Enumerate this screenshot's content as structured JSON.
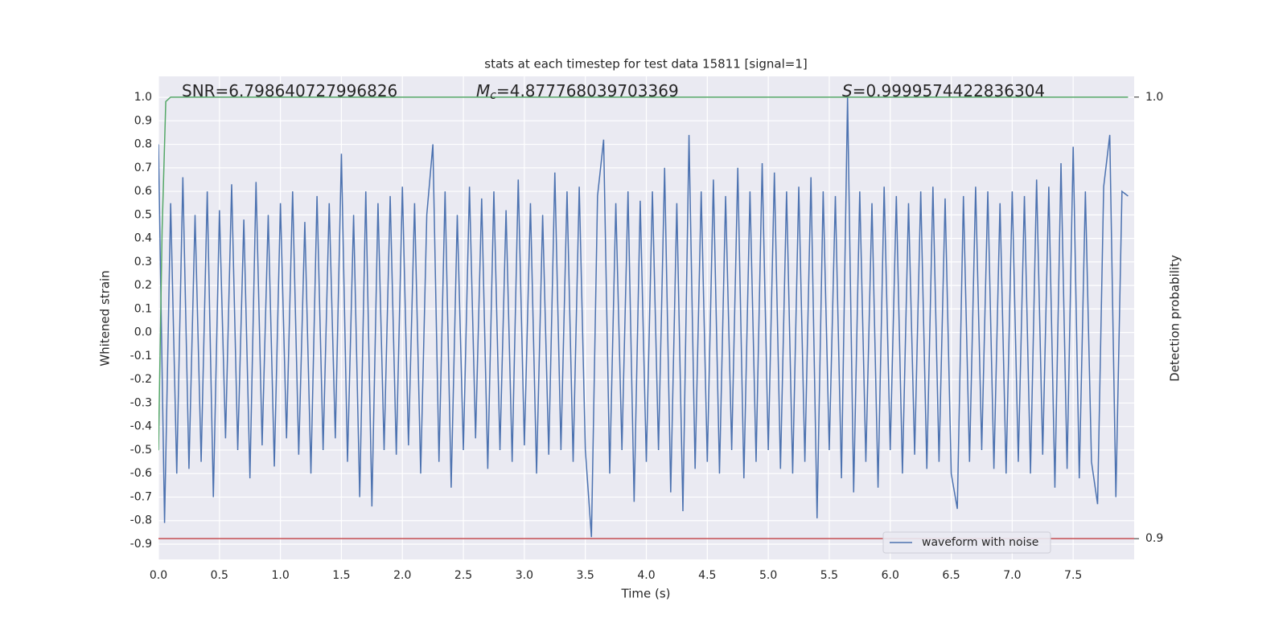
{
  "chart_data": {
    "type": "line",
    "title": "stats at each timestep for test data 15811 [signal=1]",
    "xlabel": "Time (s)",
    "ylabel": "Whitened strain",
    "y2label": "Detection probability",
    "annotations": [
      {
        "text": "SNR=6.798640727996826"
      },
      {
        "symbol": "M",
        "subscript": "c",
        "text": "=4.877768039703369"
      },
      {
        "symbol": "S",
        "text": "=0.9999574422836304"
      }
    ],
    "x": [
      0,
      0.05,
      0.1,
      0.15,
      0.2,
      0.25,
      0.3,
      0.35,
      0.4,
      0.45,
      0.5,
      0.55,
      0.6,
      0.65,
      0.7,
      0.75,
      0.8,
      0.85,
      0.9,
      0.95,
      1,
      1.05,
      1.1,
      1.15,
      1.2,
      1.25,
      1.3,
      1.35,
      1.4,
      1.45,
      1.5,
      1.55,
      1.6,
      1.65,
      1.7,
      1.75,
      1.8,
      1.85,
      1.9,
      1.95,
      2,
      2.05,
      2.1,
      2.15,
      2.2,
      2.25,
      2.3,
      2.35,
      2.4,
      2.45,
      2.5,
      2.55,
      2.6,
      2.65,
      2.7,
      2.75,
      2.8,
      2.85,
      2.9,
      2.95,
      3,
      3.05,
      3.1,
      3.15,
      3.2,
      3.25,
      3.3,
      3.35,
      3.4,
      3.45,
      3.5,
      3.55,
      3.6,
      3.65,
      3.7,
      3.75,
      3.8,
      3.85,
      3.9,
      3.95,
      4,
      4.05,
      4.1,
      4.15,
      4.2,
      4.25,
      4.3,
      4.35,
      4.4,
      4.45,
      4.5,
      4.55,
      4.6,
      4.65,
      4.7,
      4.75,
      4.8,
      4.85,
      4.9,
      4.95,
      5,
      5.05,
      5.1,
      5.15,
      5.2,
      5.25,
      5.3,
      5.35,
      5.4,
      5.45,
      5.5,
      5.55,
      5.6,
      5.65,
      5.7,
      5.75,
      5.8,
      5.85,
      5.9,
      5.95,
      6,
      6.05,
      6.1,
      6.15,
      6.2,
      6.25,
      6.3,
      6.35,
      6.4,
      6.45,
      6.5,
      6.55,
      6.6,
      6.65,
      6.7,
      6.75,
      6.8,
      6.85,
      6.9,
      6.95,
      7,
      7.05,
      7.1,
      7.15,
      7.2,
      7.25,
      7.3,
      7.35,
      7.4,
      7.45,
      7.5,
      7.55,
      7.6,
      7.65,
      7.7,
      7.75,
      7.8,
      7.85,
      7.9,
      7.95
    ],
    "series": [
      {
        "name": "waveform with noise",
        "color": "#4c72b0",
        "values": [
          0.8,
          -0.81,
          0.55,
          -0.6,
          0.66,
          -0.58,
          0.5,
          -0.55,
          0.6,
          -0.7,
          0.52,
          -0.45,
          0.63,
          -0.5,
          0.48,
          -0.62,
          0.64,
          -0.48,
          0.5,
          -0.57,
          0.55,
          -0.45,
          0.6,
          -0.52,
          0.47,
          -0.6,
          0.58,
          -0.5,
          0.55,
          -0.45,
          0.76,
          -0.55,
          0.5,
          -0.7,
          0.6,
          -0.74,
          0.55,
          -0.5,
          0.58,
          -0.52,
          0.62,
          -0.48,
          0.55,
          -0.6,
          0.5,
          0.8,
          -0.55,
          0.6,
          -0.66,
          0.5,
          -0.5,
          0.62,
          -0.45,
          0.57,
          -0.58,
          0.6,
          -0.5,
          0.52,
          -0.55,
          0.65,
          -0.48,
          0.55,
          -0.6,
          0.5,
          -0.52,
          0.68,
          -0.5,
          0.6,
          -0.55,
          0.62,
          -0.5,
          -0.87,
          0.58,
          0.82,
          -0.6,
          0.55,
          -0.5,
          0.6,
          -0.72,
          0.56,
          -0.55,
          0.6,
          -0.5,
          0.7,
          -0.68,
          0.55,
          -0.76,
          0.84,
          -0.58,
          0.6,
          -0.55,
          0.65,
          -0.6,
          0.58,
          -0.5,
          0.7,
          -0.62,
          0.6,
          -0.55,
          0.72,
          -0.5,
          0.68,
          -0.58,
          0.6,
          -0.6,
          0.62,
          -0.55,
          0.66,
          -0.79,
          0.6,
          -0.5,
          0.58,
          -0.62,
          1.0,
          -0.68,
          0.6,
          -0.55,
          0.55,
          -0.66,
          0.62,
          -0.5,
          0.58,
          -0.6,
          0.55,
          -0.52,
          0.6,
          -0.58,
          0.62,
          -0.55,
          0.57,
          -0.6,
          -0.75,
          0.58,
          -0.55,
          0.62,
          -0.5,
          0.6,
          -0.58,
          0.55,
          -0.6,
          0.6,
          -0.55,
          0.58,
          -0.6,
          0.65,
          -0.52,
          0.62,
          -0.66,
          0.72,
          -0.58,
          0.79,
          -0.62,
          0.6,
          -0.55,
          -0.73,
          0.62,
          0.84,
          -0.7,
          0.6,
          0.58
        ]
      },
      {
        "color": "#55a868",
        "axis": "y2",
        "x": [
          0,
          0.03,
          0.06,
          0.1,
          7.95
        ],
        "values": [
          0.92,
          0.97,
          0.999,
          1.0,
          1.0
        ]
      },
      {
        "color": "#c44e52",
        "axis": "y2",
        "x": [
          0,
          8.0
        ],
        "values": [
          0.9,
          0.9
        ]
      }
    ],
    "xlim": [
      0,
      8.0
    ],
    "xticks": [
      {
        "value": 0,
        "label": "0.0"
      },
      0.5,
      {
        "value": 1,
        "label": "1.0"
      },
      1.5,
      {
        "value": 2,
        "label": "2.0"
      },
      2.5,
      {
        "value": 3,
        "label": "3.0"
      },
      3.5,
      {
        "value": 4,
        "label": "4.0"
      },
      4.5,
      {
        "value": 5,
        "label": "5.0"
      },
      5.5,
      {
        "value": 6,
        "label": "6.0"
      },
      6.5,
      {
        "value": 7,
        "label": "7.0"
      },
      7.5
    ],
    "ylim": [
      -0.965,
      1.089
    ],
    "yticks": [
      {
        "value": 1,
        "label": "1.0"
      },
      0.9,
      0.8,
      0.7,
      0.6,
      0.5,
      0.4,
      0.3,
      0.2,
      0.1,
      {
        "value": 0,
        "label": "0.0"
      },
      -0.1,
      -0.2,
      -0.3,
      -0.4,
      -0.5,
      -0.6,
      -0.7,
      -0.8,
      -0.9
    ],
    "y2lim": [
      0.8953,
      1.0047
    ],
    "y2ticks": [
      {
        "value": 1,
        "label": "1.0"
      },
      0.9
    ],
    "grid": true,
    "legend": "lower right"
  }
}
